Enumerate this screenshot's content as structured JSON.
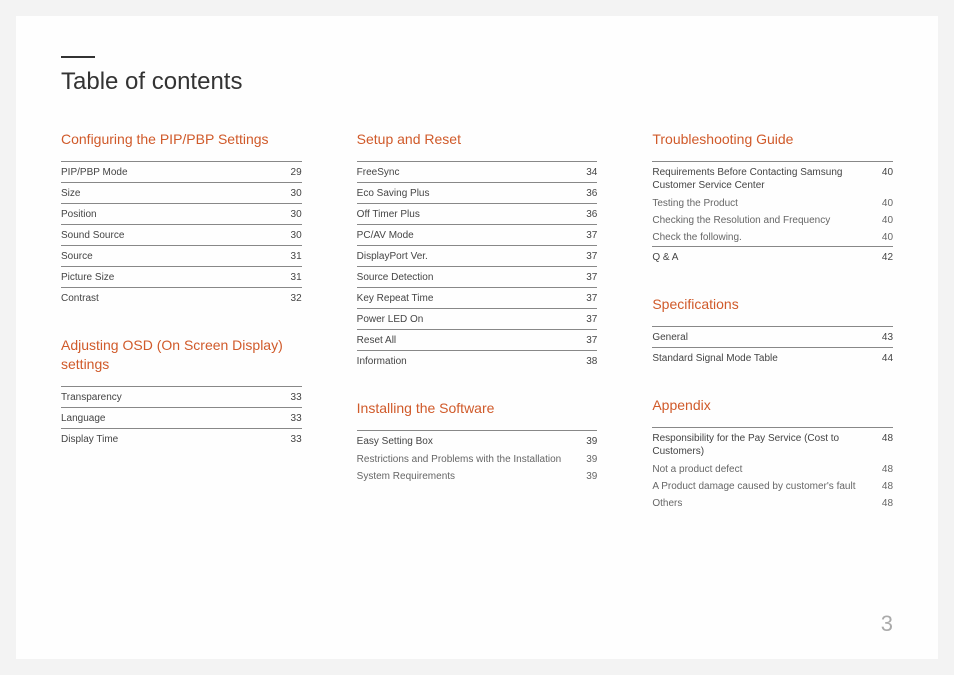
{
  "title": "Table of contents",
  "pageNumber": "3",
  "colors": {
    "heading": "#d05a2a",
    "text": "#444",
    "subtext": "#666",
    "rule": "#888",
    "pageNum": "#aaa",
    "bg": "#fefefe"
  },
  "columns": [
    {
      "sections": [
        {
          "heading": "Configuring the PIP/PBP Settings",
          "entries": [
            {
              "label": "PIP/PBP Mode",
              "page": "29",
              "ruled": true
            },
            {
              "label": "Size",
              "page": "30",
              "ruled": true
            },
            {
              "label": "Position",
              "page": "30",
              "ruled": true
            },
            {
              "label": "Sound Source",
              "page": "30",
              "ruled": true
            },
            {
              "label": "Source",
              "page": "31",
              "ruled": true
            },
            {
              "label": "Picture Size",
              "page": "31",
              "ruled": true
            },
            {
              "label": "Contrast",
              "page": "32",
              "ruled": true
            }
          ]
        },
        {
          "heading": "Adjusting OSD (On Screen Display) settings",
          "entries": [
            {
              "label": "Transparency",
              "page": "33",
              "ruled": true
            },
            {
              "label": "Language",
              "page": "33",
              "ruled": true
            },
            {
              "label": "Display Time",
              "page": "33",
              "ruled": true
            }
          ]
        }
      ]
    },
    {
      "sections": [
        {
          "heading": "Setup and Reset",
          "entries": [
            {
              "label": "FreeSync",
              "page": "34",
              "ruled": true
            },
            {
              "label": "Eco Saving Plus",
              "page": "36",
              "ruled": true
            },
            {
              "label": "Off Timer Plus",
              "page": "36",
              "ruled": true
            },
            {
              "label": "PC/AV Mode",
              "page": "37",
              "ruled": true
            },
            {
              "label": "DisplayPort Ver.",
              "page": "37",
              "ruled": true
            },
            {
              "label": "Source Detection",
              "page": "37",
              "ruled": true
            },
            {
              "label": "Key Repeat Time",
              "page": "37",
              "ruled": true
            },
            {
              "label": "Power LED On",
              "page": "37",
              "ruled": true
            },
            {
              "label": "Reset All",
              "page": "37",
              "ruled": true
            },
            {
              "label": "Information",
              "page": "38",
              "ruled": true
            }
          ]
        },
        {
          "heading": "Installing the Software",
          "entries": [
            {
              "label": "Easy Setting Box",
              "page": "39",
              "ruled": true
            },
            {
              "label": "Restrictions and Problems with the Installation",
              "page": "39",
              "ruled": false,
              "sub": true
            },
            {
              "label": "System Requirements",
              "page": "39",
              "ruled": false,
              "sub": true
            }
          ]
        }
      ]
    },
    {
      "sections": [
        {
          "heading": "Troubleshooting Guide",
          "entries": [
            {
              "label": "Requirements Before Contacting Samsung Customer Service Center",
              "page": "40",
              "ruled": true
            },
            {
              "label": "Testing the Product",
              "page": "40",
              "ruled": false,
              "sub": true
            },
            {
              "label": "Checking the Resolution and Frequency",
              "page": "40",
              "ruled": false,
              "sub": true
            },
            {
              "label": "Check the following.",
              "page": "40",
              "ruled": false,
              "sub": true
            },
            {
              "label": "Q & A",
              "page": "42",
              "ruled": true
            }
          ]
        },
        {
          "heading": "Specifications",
          "entries": [
            {
              "label": "General",
              "page": "43",
              "ruled": true
            },
            {
              "label": "Standard Signal Mode Table",
              "page": "44",
              "ruled": true
            }
          ]
        },
        {
          "heading": "Appendix",
          "entries": [
            {
              "label": "Responsibility for the Pay Service (Cost to Customers)",
              "page": "48",
              "ruled": true
            },
            {
              "label": "Not a product defect",
              "page": "48",
              "ruled": false,
              "sub": true
            },
            {
              "label": "A Product damage caused by customer's fault",
              "page": "48",
              "ruled": false,
              "sub": true
            },
            {
              "label": "Others",
              "page": "48",
              "ruled": false,
              "sub": true
            }
          ]
        }
      ]
    }
  ]
}
